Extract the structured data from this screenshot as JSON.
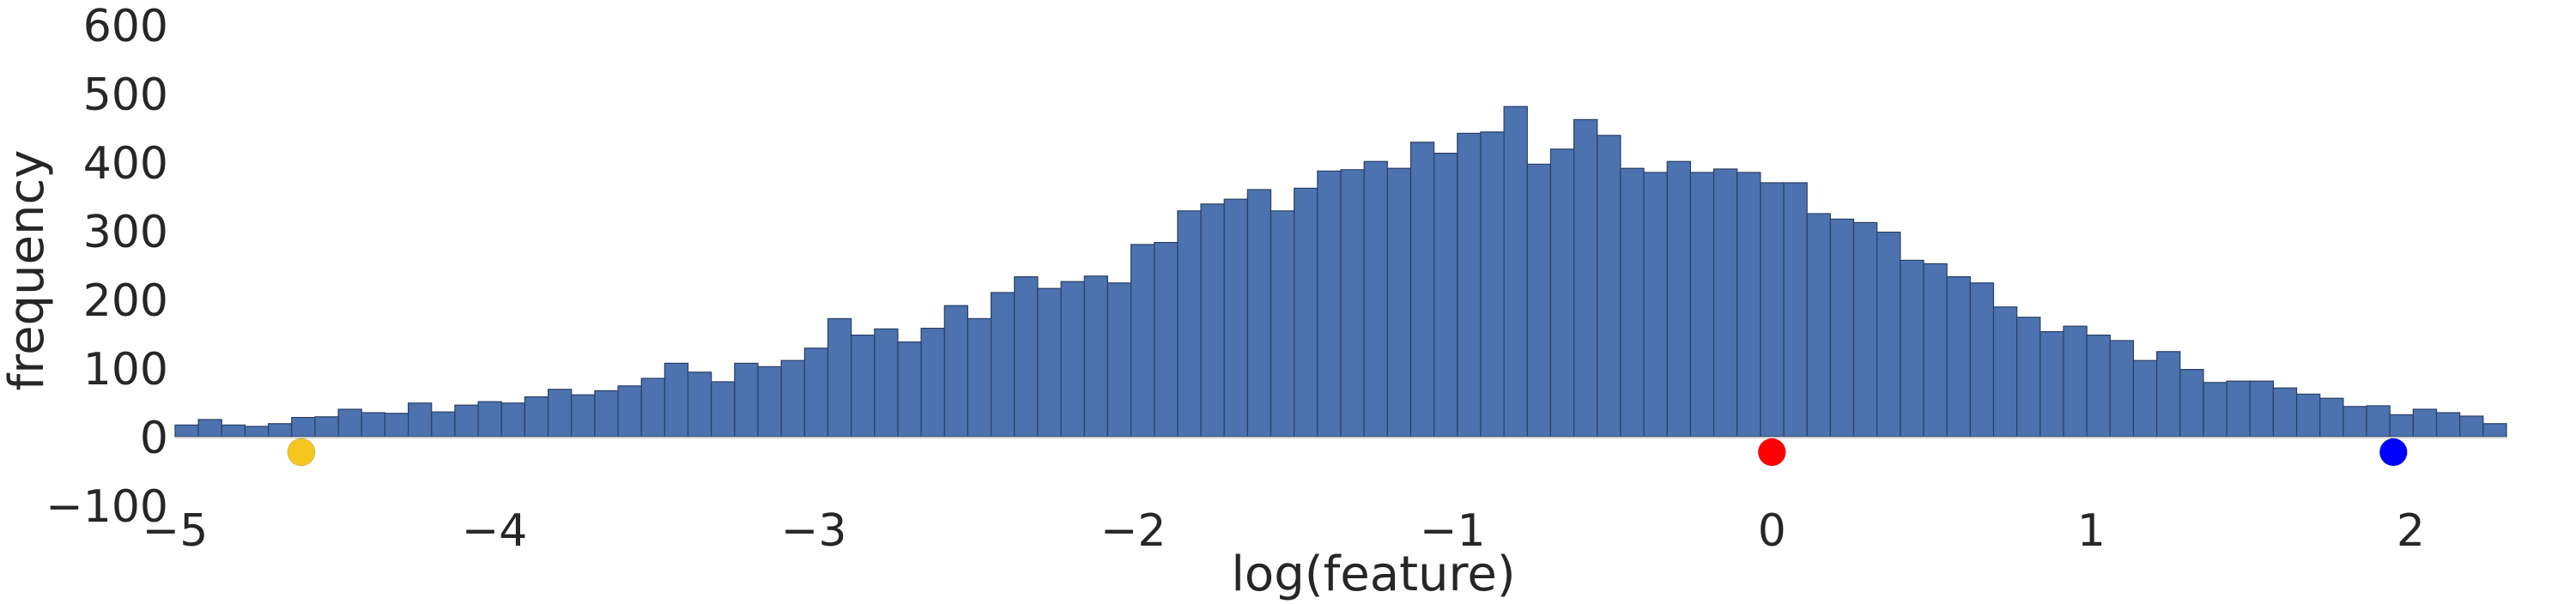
{
  "chart_data": {
    "type": "bar",
    "subtype": "histogram",
    "title": "",
    "xlabel": "log(feature)",
    "ylabel": "frequency",
    "xlim": [
      -5,
      2.3
    ],
    "ylim": [
      -100,
      600
    ],
    "grid": false,
    "bin_start": -5,
    "bin_width": 0.073,
    "values": [
      17,
      25,
      17,
      15,
      19,
      28,
      29,
      40,
      35,
      34,
      49,
      36,
      46,
      51,
      49,
      58,
      69,
      61,
      67,
      74,
      85,
      107,
      94,
      80,
      107,
      102,
      111,
      129,
      172,
      148,
      157,
      138,
      158,
      191,
      172,
      210,
      233,
      216,
      226,
      234,
      224,
      280,
      283,
      329,
      339,
      346,
      360,
      329,
      362,
      387,
      389,
      401,
      391,
      429,
      413,
      442,
      444,
      481,
      397,
      419,
      462,
      439,
      391,
      385,
      401,
      385,
      390,
      385,
      370,
      370,
      325,
      317,
      312,
      298,
      257,
      252,
      233,
      224,
      189,
      174,
      153,
      161,
      148,
      140,
      111,
      124,
      98,
      79,
      81,
      81,
      71,
      62,
      56,
      44,
      45,
      32,
      40,
      35,
      30,
      19
    ],
    "x_ticks": [
      "−5",
      "−4",
      "−3",
      "−2",
      "−1",
      "0",
      "1",
      "2"
    ],
    "x_tick_values": [
      -5,
      -4,
      -3,
      -2,
      -1,
      0,
      1,
      2
    ],
    "y_ticks": [
      "−100",
      "0",
      "100",
      "200",
      "300",
      "400",
      "500",
      "600"
    ],
    "y_tick_values": [
      -100,
      0,
      100,
      200,
      300,
      400,
      500,
      600
    ],
    "markers": [
      {
        "x": -4.605,
        "y": -20,
        "color": "#f5c61d"
      },
      {
        "x": 0,
        "y": -20,
        "color": "#ff0000"
      },
      {
        "x": 1.946,
        "y": -20,
        "color": "#0000ff"
      }
    ],
    "bar_color": "#4c72b0",
    "bar_edge_color": "#2b3f63"
  }
}
